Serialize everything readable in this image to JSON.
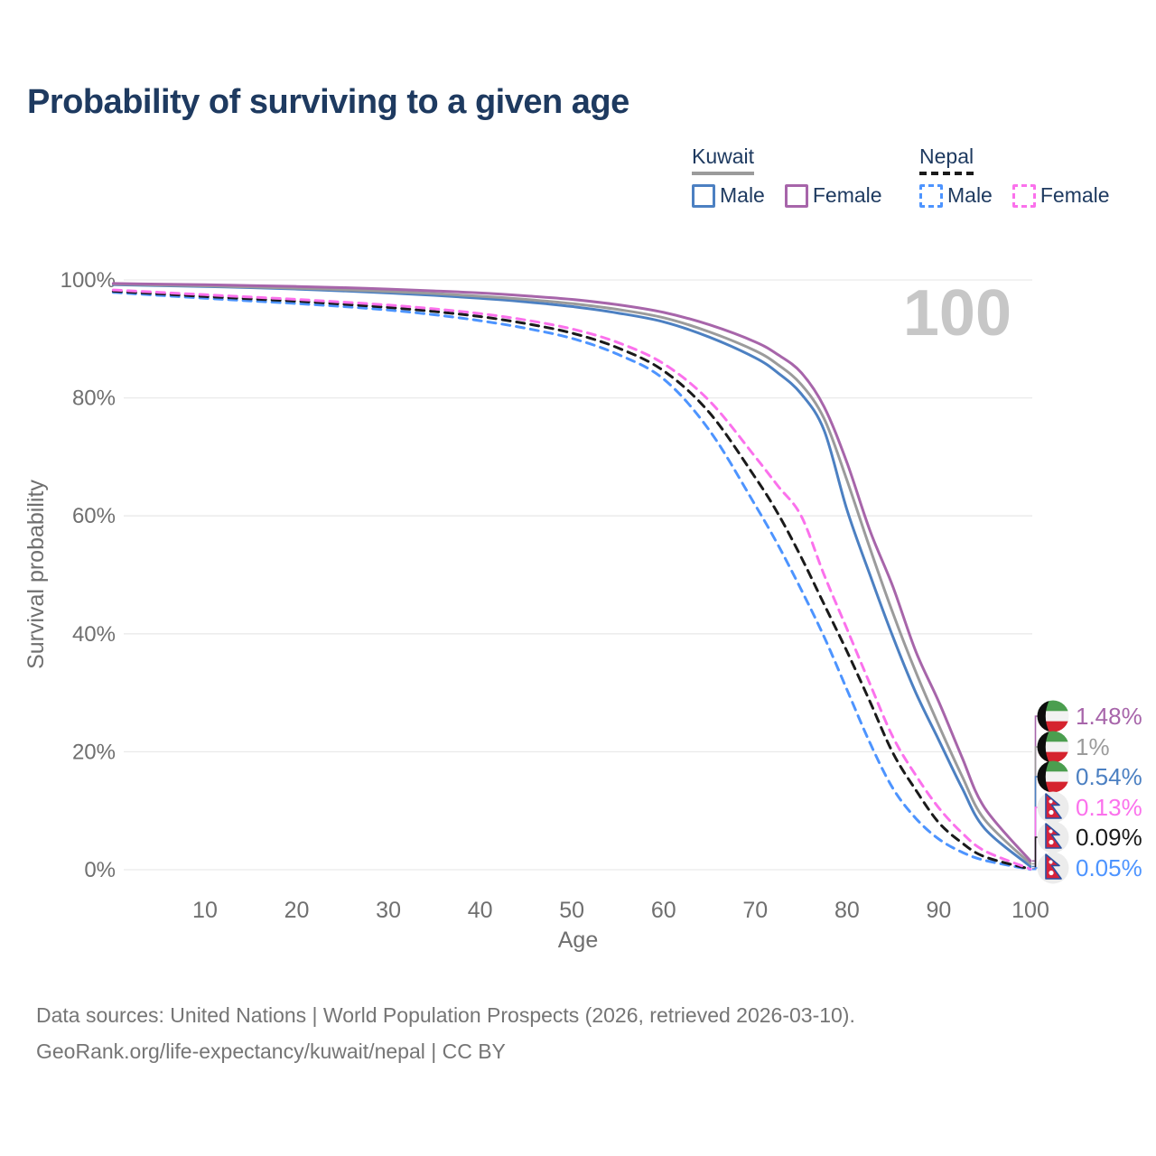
{
  "title": "Probability of surviving to a given age",
  "watermark": "100",
  "legend": {
    "groups": [
      {
        "country": "Kuwait",
        "line_style": "solid",
        "items": [
          {
            "label": "Male",
            "color": "#4c80c2"
          },
          {
            "label": "Female",
            "color": "#a765aa"
          }
        ]
      },
      {
        "country": "Nepal",
        "line_style": "dashed",
        "items": [
          {
            "label": "Male",
            "color": "#4d94ff"
          },
          {
            "label": "Female",
            "color": "#fb71ec"
          }
        ]
      }
    ]
  },
  "chart_data": {
    "type": "line",
    "title": "Probability of surviving to a given age",
    "xlabel": "Age",
    "ylabel": "Survival probability",
    "xlim": [
      0,
      100
    ],
    "ylim": [
      0,
      100
    ],
    "grid": "horizontal",
    "x_ticks": [
      10,
      20,
      30,
      40,
      50,
      60,
      70,
      80,
      90,
      100
    ],
    "y_ticks": [
      0,
      20,
      40,
      60,
      80,
      100
    ],
    "y_tick_labels": [
      "0%",
      "20%",
      "40%",
      "60%",
      "80%",
      "100%"
    ],
    "x": [
      0,
      5,
      10,
      15,
      20,
      25,
      30,
      35,
      40,
      45,
      50,
      55,
      60,
      65,
      70,
      72.5,
      75,
      77.5,
      80,
      82.5,
      85,
      87.5,
      90,
      92.5,
      95,
      100
    ],
    "series": [
      {
        "name": "Kuwait Female",
        "country": "Kuwait",
        "sex": "Female",
        "color": "#a765aa",
        "dash": "solid",
        "flag": "kuwait",
        "end_label": "1.48%",
        "end_value": 1.48,
        "values": [
          99.4,
          99.3,
          99.2,
          99.05,
          98.9,
          98.7,
          98.45,
          98.15,
          97.8,
          97.3,
          96.7,
          95.8,
          94.5,
          92.4,
          89.5,
          87.3,
          84.3,
          78.5,
          69,
          57.5,
          48,
          37,
          28.5,
          19.2,
          10.5,
          1.48
        ]
      },
      {
        "name": "Kuwait",
        "country": "Kuwait",
        "sex": "All",
        "color": "#9b9b9b",
        "dash": "solid",
        "flag": "kuwait",
        "end_label": "1%",
        "end_value": 1.0,
        "values": [
          99.3,
          99.15,
          99.0,
          98.8,
          98.6,
          98.35,
          98.05,
          97.7,
          97.25,
          96.7,
          96.0,
          95.0,
          93.6,
          91.2,
          88.0,
          85.6,
          82.3,
          76.5,
          66,
          54.5,
          43.5,
          33.5,
          24.5,
          16,
          8.5,
          1.0
        ]
      },
      {
        "name": "Kuwait Male",
        "country": "Kuwait",
        "sex": "Male",
        "color": "#4c80c2",
        "dash": "solid",
        "flag": "kuwait",
        "end_label": "0.54%",
        "end_value": 0.54,
        "values": [
          99.2,
          99.05,
          98.9,
          98.7,
          98.45,
          98.15,
          97.8,
          97.4,
          96.9,
          96.3,
          95.5,
          94.4,
          92.9,
          90.3,
          86.8,
          84.2,
          80.7,
          74.5,
          61,
          50,
          39.5,
          30,
          22,
          14,
          7,
          0.54
        ]
      },
      {
        "name": "Nepal Female",
        "country": "Nepal",
        "sex": "Female",
        "color": "#fb71ec",
        "dash": "dashed",
        "flag": "nepal",
        "end_label": "0.13%",
        "end_value": 0.13,
        "values": [
          98.3,
          97.9,
          97.5,
          97.1,
          96.7,
          96.25,
          95.75,
          95.1,
          94.3,
          93.2,
          91.7,
          89.4,
          85.8,
          79.5,
          70,
          65,
          60,
          50,
          40.8,
          31.5,
          22.5,
          16,
          10.5,
          6.3,
          3.2,
          0.13
        ]
      },
      {
        "name": "Nepal",
        "country": "Nepal",
        "sex": "All",
        "color": "#1a1a1a",
        "dash": "dashed",
        "flag": "nepal",
        "end_label": "0.09%",
        "end_value": 0.09,
        "values": [
          98.1,
          97.65,
          97.2,
          96.8,
          96.4,
          95.9,
          95.35,
          94.65,
          93.8,
          92.6,
          91.0,
          88.5,
          84.6,
          77.5,
          66.5,
          60.3,
          53,
          45,
          37,
          28.5,
          19.8,
          13.5,
          8,
          4.6,
          2.2,
          0.09
        ]
      },
      {
        "name": "Nepal Male",
        "country": "Nepal",
        "sex": "Male",
        "color": "#4d94ff",
        "dash": "dashed",
        "flag": "nepal",
        "end_label": "0.05%",
        "end_value": 0.05,
        "values": [
          97.9,
          97.4,
          96.9,
          96.45,
          96.0,
          95.5,
          94.9,
          94.1,
          93.1,
          91.8,
          90.1,
          87.4,
          83.2,
          74.5,
          61.8,
          55,
          47.5,
          39.5,
          30.5,
          21.5,
          13.8,
          8.7,
          5.2,
          3,
          1.6,
          0.05
        ]
      }
    ]
  },
  "footer": {
    "line1": "Data sources: United Nations | World Population Prospects (2026, retrieved 2026-03-10).",
    "line2": "GeoRank.org/life-expectancy/kuwait/nepal | CC BY"
  }
}
